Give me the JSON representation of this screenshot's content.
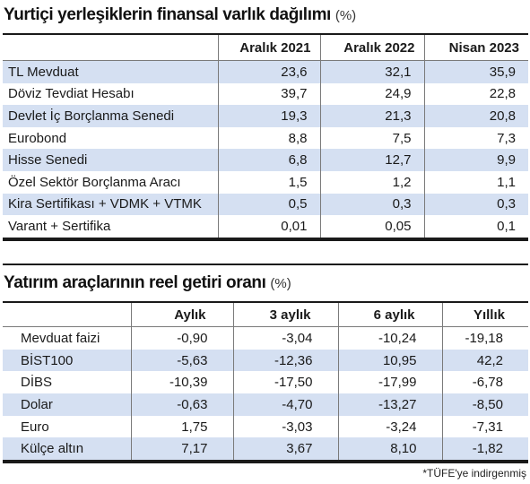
{
  "section1": {
    "title": "Yurtiçi yerleşiklerin finansal varlık dağılımı",
    "unit": "(%)",
    "columns": [
      "Aralık 2021",
      "Aralık 2022",
      "Nisan 2023"
    ],
    "rows": [
      {
        "label": "TL Mevduat",
        "values": [
          "23,6",
          "32,1",
          "35,9"
        ]
      },
      {
        "label": "Döviz Tevdiat Hesabı",
        "values": [
          "39,7",
          "24,9",
          "22,8"
        ]
      },
      {
        "label": "Devlet İç Borçlanma Senedi",
        "values": [
          "19,3",
          "21,3",
          "20,8"
        ]
      },
      {
        "label": "Eurobond",
        "values": [
          "8,8",
          "7,5",
          "7,3"
        ]
      },
      {
        "label": "Hisse Senedi",
        "values": [
          "6,8",
          "12,7",
          "9,9"
        ]
      },
      {
        "label": "Özel Sektör Borçlanma Aracı",
        "values": [
          "1,5",
          "1,2",
          "1,1"
        ]
      },
      {
        "label": "Kira Sertifikası + VDMK + VTMK",
        "values": [
          "0,5",
          "0,3",
          "0,3"
        ]
      },
      {
        "label": "Varant + Sertifika",
        "values": [
          "0,01",
          "0,05",
          "0,1"
        ]
      }
    ]
  },
  "section2": {
    "title": "Yatırım araçlarının reel getiri oranı",
    "unit": "(%)",
    "columns": [
      "Aylık",
      "3 aylık",
      "6 aylık",
      "Yıllık"
    ],
    "rows": [
      {
        "label": "Mevduat faizi",
        "values": [
          "-0,90",
          "-3,04",
          "-10,24",
          "-19,18"
        ]
      },
      {
        "label": "BİST100",
        "values": [
          "-5,63",
          "-12,36",
          "10,95",
          "42,2"
        ]
      },
      {
        "label": "DİBS",
        "values": [
          "-10,39",
          "-17,50",
          "-17,99",
          "-6,78"
        ]
      },
      {
        "label": "Dolar",
        "values": [
          "-0,63",
          "-4,70",
          "-13,27",
          "-8,50"
        ]
      },
      {
        "label": "Euro",
        "values": [
          "1,75",
          "-3,03",
          "-3,24",
          "-7,31"
        ]
      },
      {
        "label": "Külçe altın",
        "values": [
          "7,17",
          "3,67",
          "8,10",
          "-1,82"
        ]
      }
    ]
  },
  "footnote": "*TÜFE'ye indirgenmiş"
}
